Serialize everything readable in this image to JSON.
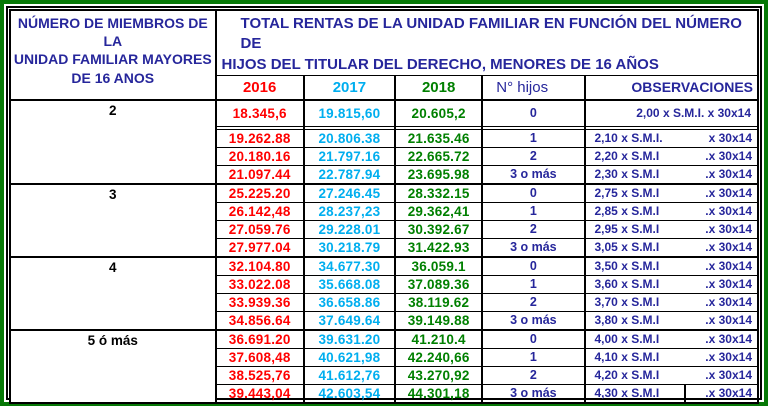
{
  "colors": {
    "frame_green": "#067806",
    "border_black": "#000000",
    "navy_text": "#26269B",
    "col_2016_red": "#FF0000",
    "col_2017_cyan": "#00AEEF",
    "col_2018_green": "#008000",
    "members_black": "#000000"
  },
  "header": {
    "left_title_lines": [
      "NÚMERO DE MIEMBROS DE LA",
      "UNIDAD FAMILIAR MAYORES",
      "DE 16 ANOS"
    ],
    "right_title_lines": [
      "TOTAL RENTAS DE LA UNIDAD FAMILIAR EN FUNCIÓN DEL NÚMERO DE",
      "HIJOS DEL TITULAR DEL DERECHO, MENORES DE 16 AÑOS"
    ],
    "years": [
      "2016",
      "2017",
      "2018"
    ],
    "hijos_label": "N° hijos",
    "observaciones_label": "OBSERVACIONES"
  },
  "groups": [
    {
      "members": "2",
      "rows": [
        {
          "y2016": "18.345,6",
          "y2017": "19.815,60",
          "y2018": "20.605,2",
          "hijos": "0",
          "obs": [
            "2,00 x S.M.I. x 30x14"
          ]
        },
        {
          "y2016": "19.262.88",
          "y2017": "20.806.38",
          "y2018": "21.635.46",
          "hijos": "1",
          "obs": [
            "2,10 x S.M.I.",
            "x 30x14"
          ]
        },
        {
          "y2016": "20.180.16",
          "y2017": "21.797.16",
          "y2018": "22.665.72",
          "hijos": "2",
          "obs": [
            "2,20 x S.M.I",
            ".x 30x14"
          ]
        },
        {
          "y2016": "21.097.44",
          "y2017": "22.787.94",
          "y2018": "23.695.98",
          "hijos": "3 o más",
          "obs": [
            "2,30 x S.M.I",
            ".x 30x14"
          ]
        }
      ]
    },
    {
      "members": "3",
      "rows": [
        {
          "y2016": "25.225.20",
          "y2017": "27.246.45",
          "y2018": "28.332.15",
          "hijos": "0",
          "obs": [
            "2,75 x S.M.I",
            ".x 30x14"
          ]
        },
        {
          "y2016": "26.142,48",
          "y2017": "28.237,23",
          "y2018": "29.362,41",
          "hijos": "1",
          "obs": [
            "2,85 x S.M.I",
            ".x 30x14"
          ]
        },
        {
          "y2016": "27.059.76",
          "y2017": "29.228.01",
          "y2018": "30.392.67",
          "hijos": "2",
          "obs": [
            "2,95 x S.M.I",
            ".x 30x14"
          ]
        },
        {
          "y2016": "27.977.04",
          "y2017": "30.218.79",
          "y2018": "31.422.93",
          "hijos": "3 o más",
          "obs": [
            "3,05 x S.M.I",
            ".x 30x14"
          ]
        }
      ]
    },
    {
      "members": "4",
      "rows": [
        {
          "y2016": "32.104.80",
          "y2017": "34.677.30",
          "y2018": "36.059.1",
          "hijos": "0",
          "obs": [
            "3,50 x S.M.I",
            ".x 30x14"
          ]
        },
        {
          "y2016": "33.022.08",
          "y2017": "35.668.08",
          "y2018": "37.089.36",
          "hijos": "1",
          "obs": [
            "3,60 x S.M.I",
            ".x 30x14"
          ]
        },
        {
          "y2016": "33.939.36",
          "y2017": "36.658.86",
          "y2018": "38.119.62",
          "hijos": "2",
          "obs": [
            "3,70 x S.M.I",
            ".x 30x14"
          ]
        },
        {
          "y2016": "34.856.64",
          "y2017": "37.649.64",
          "y2018": "39.149.88",
          "hijos": "3 o más",
          "obs": [
            "3,80 x S.M.I",
            ".x 30x14"
          ]
        }
      ]
    },
    {
      "members": "5 ó más",
      "rows": [
        {
          "y2016": "36.691.20",
          "y2017": "39.631.20",
          "y2018": "41.210.4",
          "hijos": "0",
          "obs": [
            "4,00 x S.M.I",
            ".x 30x14"
          ]
        },
        {
          "y2016": "37.608,48",
          "y2017": "40.621,98",
          "y2018": "42.240,66",
          "hijos": "1",
          "obs": [
            "4,10 x S.M.I",
            ".x 30x14"
          ]
        },
        {
          "y2016": "38.525,76",
          "y2017": "41.612,76",
          "y2018": "43.270,92",
          "hijos": "2",
          "obs": [
            "4,20 x S.M.I",
            ".x 30x14"
          ]
        },
        {
          "y2016": "39.443,04",
          "y2017": "42.603,54",
          "y2018": "44.301,18",
          "hijos": "3 o más",
          "obs": [
            "4,30 x S.M.I",
            ".x 30x14"
          ],
          "obs_divider": true
        }
      ]
    }
  ]
}
